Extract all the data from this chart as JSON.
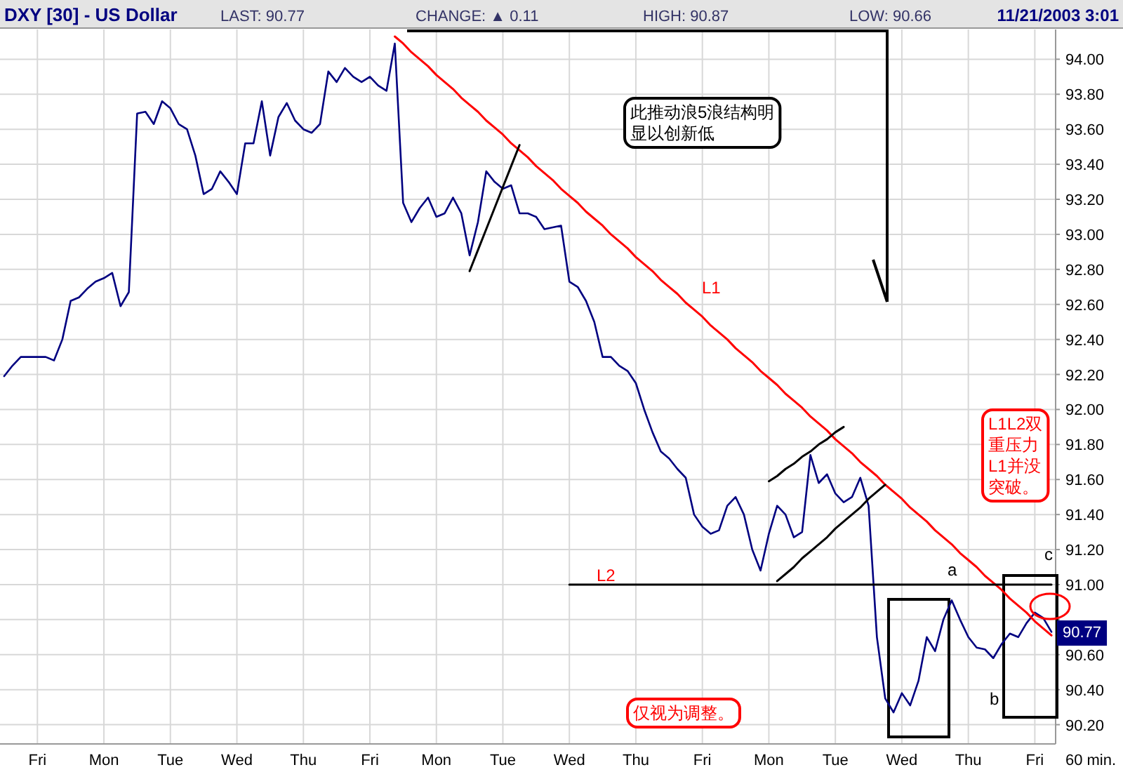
{
  "chart_data": {
    "type": "line",
    "title": "DXY [30] - US Dollar",
    "categories": [
      null,
      null,
      null,
      null,
      "Fri",
      null,
      null,
      null,
      null,
      null,
      null,
      null,
      "Mon",
      null,
      null,
      null,
      null,
      null,
      null,
      null,
      "Tue",
      null,
      null,
      null,
      null,
      null,
      null,
      null,
      "Wed",
      null,
      null,
      null,
      null,
      null,
      null,
      null,
      "Thu",
      null,
      null,
      null,
      null,
      null,
      null,
      null,
      "Fri",
      null,
      null,
      null,
      null,
      null,
      null,
      null,
      "Mon",
      null,
      null,
      null,
      null,
      null,
      null,
      null,
      "Tue",
      null,
      null,
      null,
      null,
      null,
      null,
      null,
      "Wed",
      null,
      null,
      null,
      null,
      null,
      null,
      null,
      "Thu",
      null,
      null,
      null,
      null,
      null,
      null,
      null,
      "Fri",
      null,
      null,
      null,
      null,
      null,
      null,
      null,
      "Mon",
      null,
      null,
      null,
      null,
      null,
      null,
      null,
      "Tue",
      null,
      null,
      null,
      null,
      null,
      null,
      null,
      "Wed",
      null,
      null,
      null,
      null,
      null,
      null,
      null,
      "Thu",
      null,
      null,
      null,
      null,
      null,
      null,
      null,
      "Fri",
      null,
      null
    ],
    "ylim": [
      90.09,
      94.17
    ],
    "yticks": [
      {
        "value": 90.2,
        "label": "90.20"
      },
      {
        "value": 90.4,
        "label": "90.40"
      },
      {
        "value": 90.6,
        "label": "90.60"
      },
      {
        "value": 90.8,
        "label": null
      },
      {
        "value": 91.0,
        "label": "91.00"
      },
      {
        "value": 91.2,
        "label": "91.20"
      },
      {
        "value": 91.4,
        "label": "91.40"
      },
      {
        "value": 91.6,
        "label": "91.60"
      },
      {
        "value": 91.8,
        "label": "91.80"
      },
      {
        "value": 92.0,
        "label": "92.00"
      },
      {
        "value": 92.2,
        "label": "92.20"
      },
      {
        "value": 92.4,
        "label": "92.40"
      },
      {
        "value": 92.6,
        "label": "92.60"
      },
      {
        "value": 92.8,
        "label": "92.80"
      },
      {
        "value": 93.0,
        "label": "93.00"
      },
      {
        "value": 93.2,
        "label": "93.20"
      },
      {
        "value": 93.4,
        "label": "93.40"
      },
      {
        "value": 93.6,
        "label": "93.60"
      },
      {
        "value": 93.8,
        "label": "93.80"
      },
      {
        "value": 94.0,
        "label": "94.00"
      }
    ],
    "grid": true,
    "series": [
      {
        "color": "#000080",
        "values": [
          92.19,
          92.25,
          92.3,
          92.3,
          92.3,
          92.3,
          92.28,
          92.4,
          92.62,
          92.64,
          92.69,
          92.73,
          92.75,
          92.78,
          92.59,
          92.67,
          93.69,
          93.7,
          93.63,
          93.76,
          93.72,
          93.63,
          93.6,
          93.45,
          93.23,
          93.26,
          93.36,
          93.3,
          93.23,
          93.52,
          93.52,
          93.76,
          93.45,
          93.67,
          93.75,
          93.65,
          93.6,
          93.58,
          93.63,
          93.93,
          93.87,
          93.95,
          93.9,
          93.87,
          93.9,
          93.85,
          93.82,
          94.09,
          93.18,
          93.07,
          93.15,
          93.21,
          93.1,
          93.12,
          93.21,
          93.12,
          92.88,
          93.07,
          93.36,
          93.3,
          93.26,
          93.28,
          93.12,
          93.12,
          93.1,
          93.03,
          93.04,
          93.05,
          92.73,
          92.7,
          92.62,
          92.5,
          92.3,
          92.3,
          92.25,
          92.22,
          92.15,
          92.0,
          91.87,
          91.76,
          91.72,
          91.66,
          91.61,
          91.4,
          91.33,
          91.29,
          91.31,
          91.45,
          91.5,
          91.4,
          91.2,
          91.08,
          91.29,
          91.45,
          91.4,
          91.27,
          91.3,
          91.74,
          91.58,
          91.63,
          91.52,
          91.47,
          91.5,
          91.61,
          91.45,
          90.7,
          90.35,
          90.27,
          90.38,
          90.31,
          90.45,
          90.7,
          90.62,
          90.8,
          90.91,
          90.8,
          90.7,
          90.64,
          90.63,
          90.58,
          90.66,
          90.72,
          90.7,
          90.78,
          90.84,
          90.81,
          90.73
        ]
      },
      {
        "color": "#ff0000",
        "values": [
          null,
          null,
          null,
          null,
          null,
          null,
          null,
          null,
          null,
          null,
          null,
          null,
          null,
          null,
          null,
          null,
          null,
          null,
          null,
          null,
          null,
          null,
          null,
          null,
          null,
          null,
          null,
          null,
          null,
          null,
          null,
          null,
          null,
          null,
          null,
          null,
          null,
          null,
          null,
          null,
          null,
          null,
          null,
          null,
          null,
          null,
          null,
          94.13,
          94.09,
          94.04,
          94.0,
          93.96,
          93.91,
          93.87,
          93.83,
          93.78,
          93.74,
          93.7,
          93.65,
          93.61,
          93.57,
          93.52,
          93.48,
          93.44,
          93.39,
          93.35,
          93.31,
          93.26,
          93.22,
          93.18,
          93.13,
          93.09,
          93.05,
          93.0,
          92.96,
          92.92,
          92.87,
          92.83,
          92.79,
          92.74,
          92.7,
          92.66,
          92.61,
          92.57,
          92.53,
          92.48,
          92.44,
          92.4,
          92.35,
          92.31,
          92.27,
          92.22,
          92.18,
          92.14,
          92.09,
          92.05,
          92.01,
          91.96,
          91.92,
          91.88,
          91.83,
          91.79,
          91.75,
          91.7,
          91.66,
          91.62,
          91.57,
          91.53,
          91.49,
          91.44,
          91.4,
          91.36,
          91.31,
          91.27,
          91.23,
          91.18,
          91.14,
          91.1,
          91.05,
          91.01,
          90.97,
          90.92,
          90.88,
          90.84,
          90.79,
          90.75,
          90.71
        ]
      },
      {
        "color": "#000000",
        "values": [
          null,
          null,
          null,
          null,
          null,
          null,
          null,
          null,
          null,
          null,
          null,
          null,
          null,
          null,
          null,
          null,
          null,
          null,
          null,
          null,
          null,
          null,
          null,
          null,
          null,
          null,
          null,
          null,
          null,
          null,
          null,
          null,
          null,
          null,
          null,
          null,
          null,
          null,
          null,
          null,
          null,
          null,
          null,
          null,
          null,
          null,
          null,
          null,
          null,
          null,
          null,
          null,
          null,
          null,
          null,
          null,
          null,
          null,
          null,
          null,
          null,
          null,
          null,
          null,
          null,
          null,
          null,
          null,
          91.0,
          91.0,
          91.0,
          91.0,
          91.0,
          91.0,
          91.0,
          91.0,
          91.0,
          91.0,
          91.0,
          91.0,
          91.0,
          91.0,
          91.0,
          91.0,
          91.0,
          91.0,
          91.0,
          91.0,
          91.0,
          91.0,
          91.0,
          91.0,
          91.0,
          91.0,
          91.0,
          91.0,
          91.0,
          91.0,
          91.0,
          91.0,
          91.0,
          91.0,
          91.0,
          91.0,
          91.0,
          91.0,
          91.0,
          91.0,
          91.0,
          91.0,
          91.0,
          91.0,
          91.0,
          91.0,
          91.0,
          91.0,
          91.0,
          91.0,
          91.0,
          91.0,
          91.0,
          91.0,
          91.0,
          91.0,
          91.0,
          91.0,
          91.0
        ]
      },
      {
        "color": "#000000",
        "values": [
          null,
          null,
          null,
          null,
          null,
          null,
          null,
          null,
          null,
          null,
          null,
          null,
          null,
          null,
          null,
          null,
          null,
          null,
          null,
          null,
          null,
          null,
          null,
          null,
          null,
          null,
          null,
          null,
          null,
          null,
          null,
          null,
          null,
          null,
          null,
          null,
          null,
          null,
          null,
          null,
          null,
          null,
          null,
          null,
          null,
          null,
          null,
          null,
          null,
          null,
          null,
          null,
          null,
          null,
          null,
          null,
          null,
          null,
          null,
          null,
          null,
          null,
          null,
          null,
          null,
          null,
          null,
          null,
          null,
          null,
          null,
          null,
          null,
          null,
          null,
          null,
          null,
          null,
          null,
          null,
          null,
          null,
          null,
          null,
          null,
          null,
          null,
          null,
          null,
          null,
          null,
          null,
          91.59,
          91.62,
          91.66,
          91.69,
          91.73,
          91.76,
          91.8,
          91.83,
          91.87,
          91.9,
          null,
          null,
          null,
          null,
          null,
          null,
          null,
          null,
          null,
          null,
          null,
          null,
          null,
          null,
          null,
          null,
          null,
          null,
          null,
          null,
          null,
          null,
          null,
          null,
          null
        ]
      },
      {
        "color": "#000000",
        "values": [
          null,
          null,
          null,
          null,
          null,
          null,
          null,
          null,
          null,
          null,
          null,
          null,
          null,
          null,
          null,
          null,
          null,
          null,
          null,
          null,
          null,
          null,
          null,
          null,
          null,
          null,
          null,
          null,
          null,
          null,
          null,
          null,
          null,
          null,
          null,
          null,
          null,
          null,
          null,
          null,
          null,
          null,
          null,
          null,
          null,
          null,
          null,
          null,
          null,
          null,
          null,
          null,
          null,
          null,
          null,
          null,
          null,
          null,
          null,
          null,
          null,
          null,
          null,
          null,
          null,
          null,
          null,
          null,
          null,
          null,
          null,
          null,
          null,
          null,
          null,
          null,
          null,
          null,
          null,
          null,
          null,
          null,
          null,
          null,
          null,
          null,
          null,
          null,
          null,
          null,
          null,
          null,
          null,
          91.02,
          91.06,
          91.1,
          91.15,
          91.19,
          91.23,
          91.27,
          91.32,
          91.36,
          91.4,
          91.44,
          91.49,
          91.53,
          91.57,
          null,
          null,
          null,
          null,
          null,
          null,
          null,
          null,
          null,
          null,
          null,
          null,
          null,
          null,
          null,
          null,
          null,
          null,
          null,
          null
        ]
      },
      {
        "color": "#000000",
        "values": [
          null,
          null,
          null,
          null,
          null,
          null,
          null,
          null,
          null,
          null,
          null,
          null,
          null,
          null,
          null,
          null,
          null,
          null,
          null,
          null,
          null,
          null,
          null,
          null,
          null,
          null,
          null,
          null,
          null,
          null,
          null,
          null,
          null,
          null,
          null,
          null,
          null,
          null,
          null,
          null,
          null,
          null,
          null,
          null,
          null,
          null,
          null,
          null,
          null,
          null,
          null,
          null,
          null,
          null,
          null,
          null,
          92.79,
          92.91,
          93.03,
          93.15,
          93.27,
          93.39,
          93.51,
          null,
          null,
          null,
          null,
          null,
          null,
          null,
          null,
          null,
          null,
          null,
          null,
          null,
          null,
          null,
          null,
          null,
          null,
          null,
          null,
          null,
          null,
          null,
          null,
          null,
          null,
          null,
          null,
          null,
          null,
          null,
          null,
          null,
          null,
          null,
          null,
          null,
          null,
          null,
          null,
          null,
          null,
          null,
          null,
          null,
          null,
          null,
          null,
          null,
          null,
          null,
          null,
          null,
          null,
          null,
          null,
          null,
          null,
          null,
          null,
          null,
          null,
          null,
          null
        ]
      }
    ],
    "annotations": [
      "LAST: 90.77",
      "CHANGE: ▲ 0.11",
      "HIGH: 90.87",
      "LOW: 90.66",
      "11/21/2003 3:01",
      "60 min.",
      "此推动浪5浪结构明显以创新低",
      "L1L2双重压力L1并没突破。",
      "仅视为调整。",
      "90.77",
      "L1",
      "L2",
      "a",
      "b",
      "c"
    ]
  }
}
